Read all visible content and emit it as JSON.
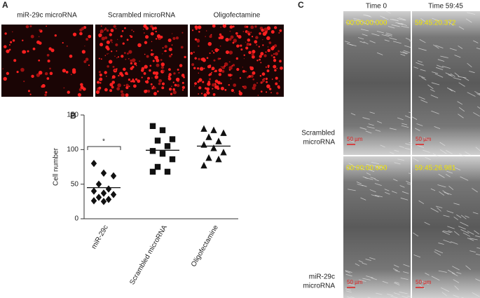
{
  "panel_a": {
    "letter": "A",
    "labels": [
      "miR-29c microRNA",
      "Scrambled microRNA",
      "Oligofectamine"
    ]
  },
  "chart_data": {
    "type": "dot",
    "letter": "B",
    "y_label": "Cell number",
    "categories": [
      "miR-29c",
      "Scrambled microRNA",
      "Oligofectamine"
    ],
    "groups": [
      {
        "marker": "diamond",
        "values": [
          80,
          66,
          62,
          50,
          43,
          40,
          37,
          35,
          31,
          28,
          26,
          25
        ],
        "mean": 45
      },
      {
        "marker": "square",
        "values": [
          134,
          128,
          115,
          113,
          105,
          98,
          94,
          86,
          75,
          68,
          68
        ],
        "mean": 99
      },
      {
        "marker": "triangle",
        "values": [
          130,
          128,
          124,
          118,
          112,
          107,
          102,
          96,
          88,
          86,
          77
        ],
        "mean": 105
      }
    ],
    "color": "#111111",
    "ylim": [
      0,
      150
    ],
    "yticks": [
      0,
      50,
      100,
      150
    ],
    "annotation": "*"
  },
  "panel_c": {
    "letter": "C",
    "column_headers": [
      "Time 0",
      "Time 59:45"
    ],
    "row_labels": [
      [
        "Scrambled",
        "microRNA"
      ],
      [
        "miR-29c",
        "microRNA"
      ]
    ],
    "timestamps": [
      [
        "00:00:00.000",
        "59:45:20.372"
      ],
      [
        "00:00:00.000",
        "59:45:26.981"
      ]
    ],
    "scale_bar": "50 µm"
  }
}
